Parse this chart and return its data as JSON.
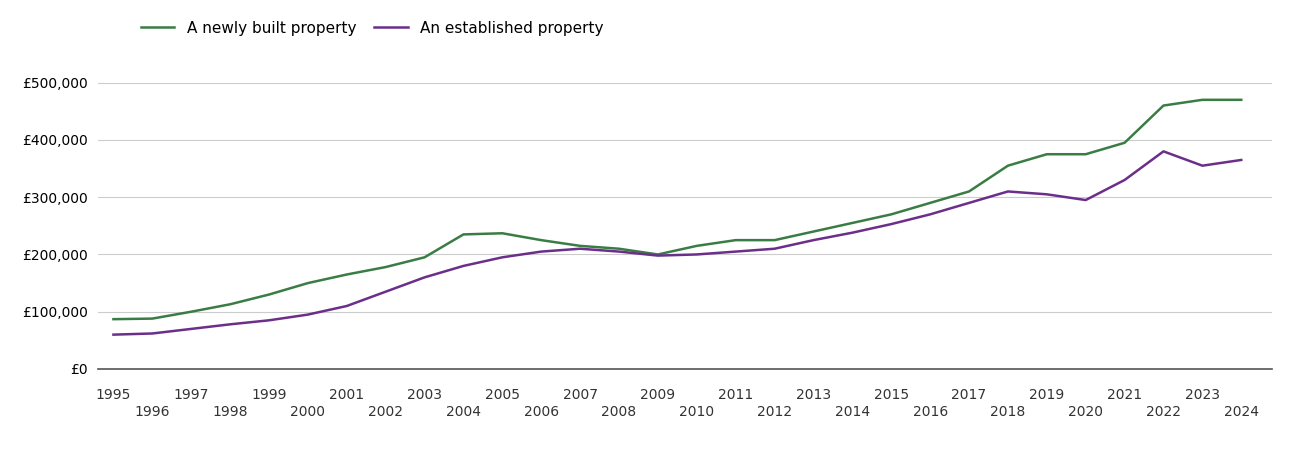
{
  "newly_built": {
    "years": [
      1995,
      1996,
      1997,
      1998,
      1999,
      2000,
      2001,
      2002,
      2003,
      2004,
      2005,
      2006,
      2007,
      2008,
      2009,
      2010,
      2011,
      2012,
      2013,
      2014,
      2015,
      2016,
      2017,
      2018,
      2019,
      2020,
      2021,
      2022,
      2023,
      2024
    ],
    "values": [
      87000,
      88000,
      100000,
      113000,
      130000,
      150000,
      165000,
      178000,
      195000,
      235000,
      237000,
      225000,
      215000,
      210000,
      200000,
      215000,
      225000,
      225000,
      240000,
      255000,
      270000,
      290000,
      310000,
      355000,
      375000,
      375000,
      395000,
      460000,
      470000,
      470000
    ]
  },
  "established": {
    "years": [
      1995,
      1996,
      1997,
      1998,
      1999,
      2000,
      2001,
      2002,
      2003,
      2004,
      2005,
      2006,
      2007,
      2008,
      2009,
      2010,
      2011,
      2012,
      2013,
      2014,
      2015,
      2016,
      2017,
      2018,
      2019,
      2020,
      2021,
      2022,
      2023,
      2024
    ],
    "values": [
      60000,
      62000,
      70000,
      78000,
      85000,
      95000,
      110000,
      135000,
      160000,
      180000,
      195000,
      205000,
      210000,
      205000,
      198000,
      200000,
      205000,
      210000,
      225000,
      238000,
      253000,
      270000,
      290000,
      310000,
      305000,
      295000,
      330000,
      380000,
      355000,
      365000
    ]
  },
  "newly_built_color": "#3a7d44",
  "established_color": "#6b2f8a",
  "legend_labels": [
    "A newly built property",
    "An established property"
  ],
  "ylim": [
    0,
    550000
  ],
  "yticks": [
    0,
    100000,
    200000,
    300000,
    400000,
    500000
  ],
  "ytick_labels": [
    "£0",
    "£100,000",
    "£200,000",
    "£300,000",
    "£400,000",
    "£500,000"
  ],
  "odd_years": [
    1995,
    1997,
    1999,
    2001,
    2003,
    2005,
    2007,
    2009,
    2011,
    2013,
    2015,
    2017,
    2019,
    2021,
    2023
  ],
  "even_years": [
    1996,
    1998,
    2000,
    2002,
    2004,
    2006,
    2008,
    2010,
    2012,
    2014,
    2016,
    2018,
    2020,
    2022,
    2024
  ],
  "background_color": "#ffffff",
  "grid_color": "#cccccc",
  "line_width": 1.8,
  "font_size_legend": 11,
  "font_size_ticks": 10,
  "xlim_left": 1994.6,
  "xlim_right": 2024.8
}
